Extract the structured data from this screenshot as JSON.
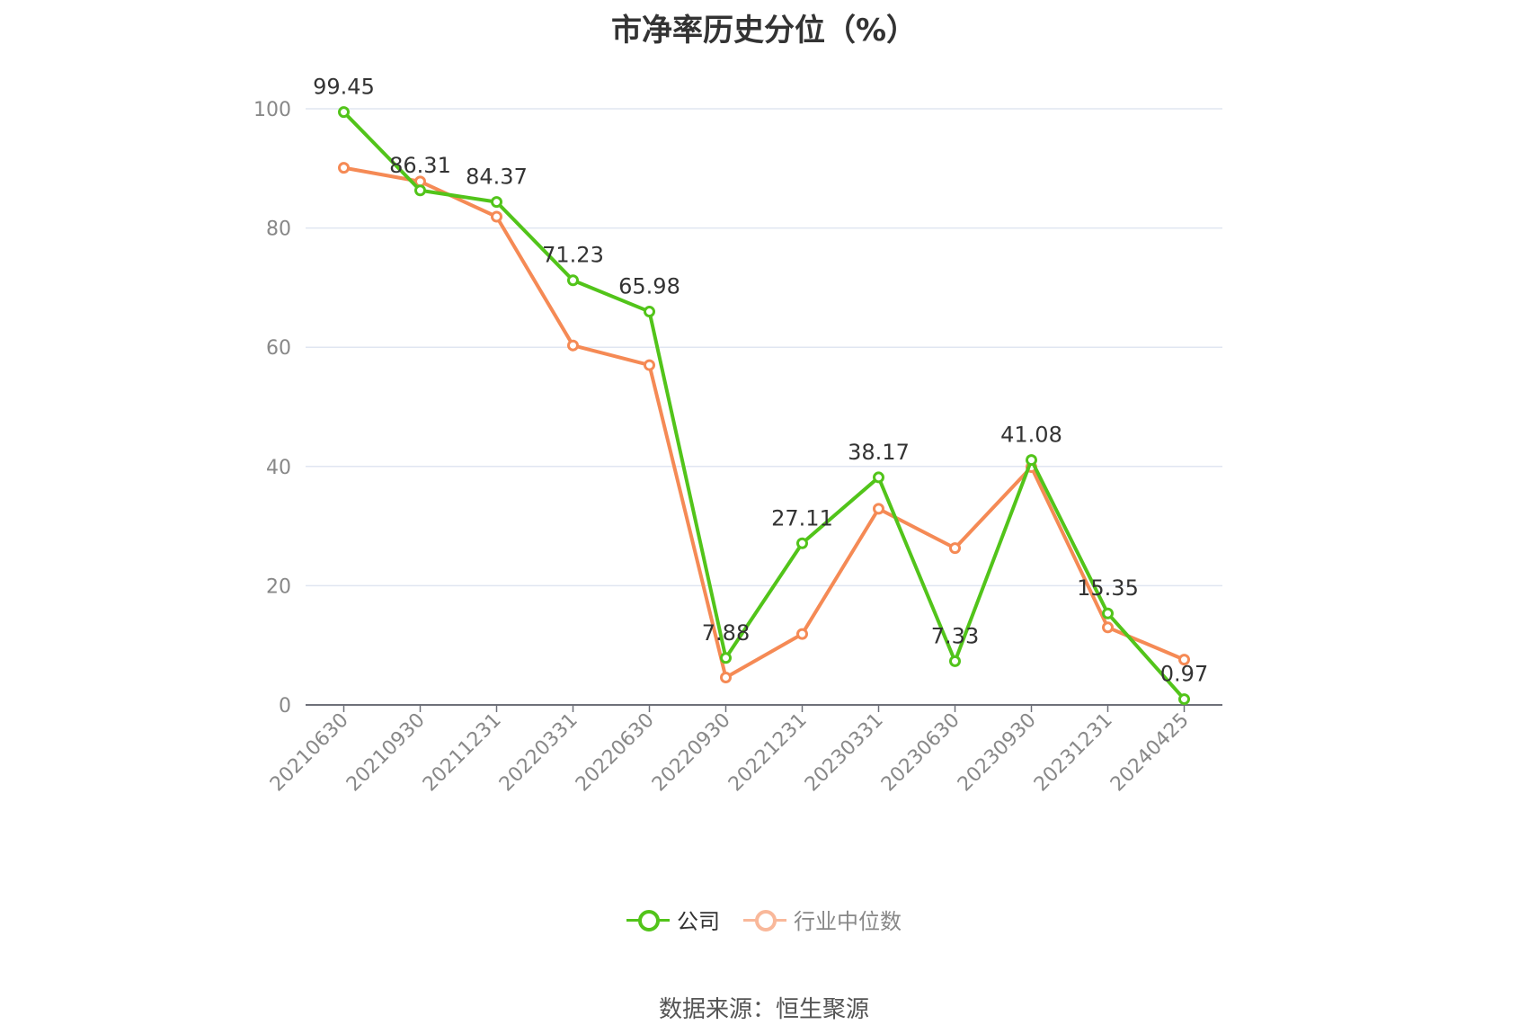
{
  "title": "市净率历史分位（%）",
  "source": "数据来源：恒生聚源",
  "colors": {
    "company": "#52c41a",
    "industry": "#f58a55",
    "industry_legend": "#f9b89a",
    "grid": "#e0e6f1",
    "axis": "#6e7079",
    "label": "#333333",
    "tick": "#888888"
  },
  "chart_data": {
    "type": "line",
    "categories": [
      "20210630",
      "20210930",
      "20211231",
      "20220331",
      "20220630",
      "20220930",
      "20221231",
      "20230331",
      "20230630",
      "20230930",
      "20231231",
      "20240425"
    ],
    "ylim": [
      0,
      100
    ],
    "yticks": [
      0,
      20,
      40,
      60,
      80,
      100
    ],
    "legend_position": "bottom",
    "grid": true,
    "series": [
      {
        "name": "公司",
        "values": [
          99.45,
          86.31,
          84.37,
          71.23,
          65.98,
          7.88,
          27.11,
          38.17,
          7.33,
          41.08,
          15.35,
          0.97
        ],
        "labels": [
          "99.45",
          "86.31",
          "84.37",
          "71.23",
          "65.98",
          "7.88",
          "27.11",
          "38.17",
          "7.33",
          "41.08",
          "15.35",
          "0.97"
        ]
      },
      {
        "name": "行业中位数",
        "values": [
          90.1,
          87.8,
          81.9,
          60.3,
          57.0,
          4.6,
          11.9,
          32.9,
          26.3,
          39.9,
          13.0,
          7.6
        ]
      }
    ]
  },
  "legend": {
    "company": "公司",
    "industry": "行业中位数"
  }
}
